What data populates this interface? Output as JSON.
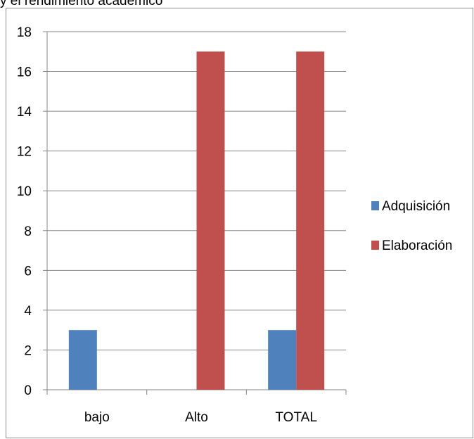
{
  "caption": "y el rendimiento académico",
  "colors": {
    "series1": "#4f81bd",
    "series2": "#c0504d",
    "grid": "#868686",
    "axis": "#868686"
  },
  "chart_data": {
    "type": "bar",
    "title": "",
    "xlabel": "",
    "ylabel": "",
    "categories": [
      "bajo",
      "Alto",
      "TOTAL"
    ],
    "series": [
      {
        "name": "Adquisición",
        "values": [
          3,
          0,
          3
        ]
      },
      {
        "name": "Elaboración",
        "values": [
          0,
          17,
          17
        ]
      }
    ],
    "ylim": [
      0,
      18
    ],
    "yticks": [
      0,
      2,
      4,
      6,
      8,
      10,
      12,
      14,
      16,
      18
    ],
    "grid": true,
    "legend_position": "right"
  }
}
